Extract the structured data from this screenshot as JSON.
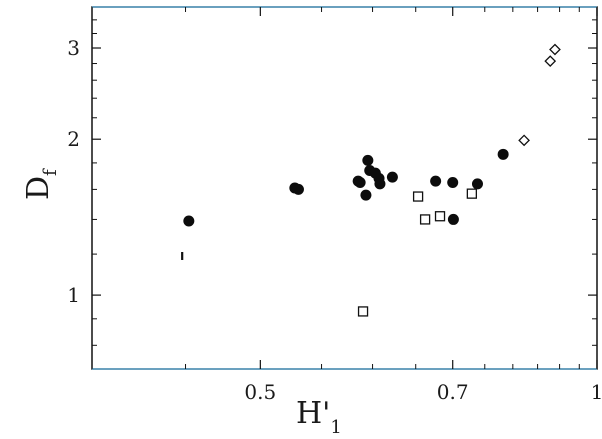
{
  "chart_data": {
    "type": "scatter",
    "xlabel": "H'",
    "xlabel_sub": "1",
    "ylabel": "D",
    "ylabel_sub": "f",
    "x_scale": "reciprocal",
    "y_scale": "log",
    "xlim": [
      0.4,
      1.0
    ],
    "ylim": [
      0.72,
      3.6
    ],
    "x_ticks": [
      0.5,
      0.7,
      1.0
    ],
    "x_tick_labels": [
      "0.5",
      "0.7",
      "1"
    ],
    "y_ticks": [
      1,
      2,
      3
    ],
    "y_tick_labels": [
      "1",
      "2",
      "3"
    ],
    "grid": false,
    "series": [
      {
        "marker": "filled-circle",
        "points": [
          [
            0.452,
            1.39
          ],
          [
            0.527,
            1.61
          ],
          [
            0.53,
            1.6
          ],
          [
            0.585,
            1.66
          ],
          [
            0.587,
            1.65
          ],
          [
            0.593,
            1.56
          ],
          [
            0.595,
            1.82
          ],
          [
            0.597,
            1.74
          ],
          [
            0.603,
            1.72
          ],
          [
            0.607,
            1.68
          ],
          [
            0.608,
            1.64
          ],
          [
            0.622,
            1.69
          ],
          [
            0.676,
            1.66
          ],
          [
            0.7,
            1.65
          ],
          [
            0.701,
            1.4
          ],
          [
            0.738,
            1.64
          ],
          [
            0.782,
            1.87
          ]
        ]
      },
      {
        "marker": "open-square",
        "points": [
          [
            0.59,
            0.93
          ],
          [
            0.653,
            1.55
          ],
          [
            0.662,
            1.4
          ],
          [
            0.682,
            1.42
          ],
          [
            0.729,
            1.57
          ]
        ]
      },
      {
        "marker": "open-diamond",
        "points": [
          [
            0.822,
            1.99
          ],
          [
            0.878,
            2.83
          ],
          [
            0.889,
            2.98
          ]
        ]
      },
      {
        "marker": "dash",
        "points": [
          [
            0.448,
            1.19
          ]
        ]
      }
    ]
  }
}
